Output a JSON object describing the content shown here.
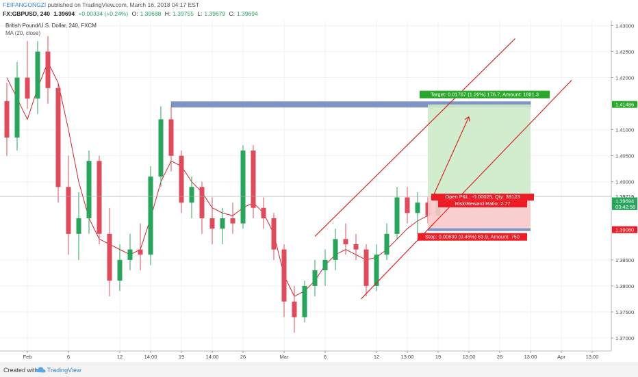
{
  "header": {
    "author": "FEIFANGONGZI",
    "published": "published on TradingView.com, March 16, 2018 04:17 EST",
    "symbol": "FX:GBPUSD, 240",
    "last": "1.39694",
    "change": "+0.00334 (+0.24%)",
    "o_label": "O:",
    "o_value": "1.39688",
    "h_label": "H:",
    "h_value": "1.39755",
    "l_label": "L:",
    "l_value": "1.39679",
    "c_label": "C:",
    "c_value": "1.39694"
  },
  "legend": {
    "instrument": "British Pound/U.S. Dollar, 240, FXCM",
    "indicator": "MA (20, close)"
  },
  "footer": {
    "created_with": "Created with",
    "brand": "TradingView"
  },
  "colors": {
    "up": "#26a65b",
    "down": "#e04a5a",
    "ma": "#d4232f",
    "channel": "#d92626",
    "target_zone": "#cdebc8",
    "stop_zone": "#f8c9c9",
    "resistance_box": "#7e93c6",
    "target_tag": "#2aa82a",
    "stop_tag": "#ee1c24"
  },
  "chart_data": {
    "type": "candlestick",
    "symbol": "GBPUSD",
    "timeframe": "240",
    "ylim": [
      1.3675,
      1.4315
    ],
    "y_ticks": [
      "1.43000",
      "1.42500",
      "1.42000",
      "1.41000",
      "1.40500",
      "1.40000",
      "1.38500",
      "1.38000",
      "1.37500",
      "1.37000"
    ],
    "x_ticks": [
      {
        "label": "Feb",
        "bar": 2
      },
      {
        "label": "6",
        "bar": 6
      },
      {
        "label": "12",
        "bar": 11
      },
      {
        "label": "14:00",
        "bar": 14
      },
      {
        "label": "19",
        "bar": 17
      },
      {
        "label": "14:00",
        "bar": 20
      },
      {
        "label": "26",
        "bar": 23
      },
      {
        "label": "Mar",
        "bar": 27
      },
      {
        "label": "6",
        "bar": 31
      },
      {
        "label": "12",
        "bar": 36
      },
      {
        "label": "13:00",
        "bar": 39
      },
      {
        "label": "19",
        "bar": 42
      },
      {
        "label": "13:00",
        "bar": 45
      },
      {
        "label": "26",
        "bar": 48
      },
      {
        "label": "13:00",
        "bar": 51
      },
      {
        "label": "Apr",
        "bar": 54
      },
      {
        "label": "13:00",
        "bar": 57
      }
    ],
    "price_labels": {
      "target": "1.41486",
      "current_upper": "1.39719",
      "current": "1.39694",
      "countdown": "03:42:56",
      "stop": "1.39080"
    },
    "candles": [
      [
        1.4155,
        1.419,
        1.405,
        1.4085
      ],
      [
        1.4085,
        1.423,
        1.406,
        1.42
      ],
      [
        1.42,
        1.427,
        1.414,
        1.416
      ],
      [
        1.416,
        1.427,
        1.413,
        1.425
      ],
      [
        1.425,
        1.428,
        1.415,
        1.418
      ],
      [
        1.418,
        1.419,
        1.396,
        1.399
      ],
      [
        1.399,
        1.405,
        1.386,
        1.39
      ],
      [
        1.39,
        1.398,
        1.385,
        1.393
      ],
      [
        1.393,
        1.406,
        1.39,
        1.404
      ],
      [
        1.404,
        1.405,
        1.388,
        1.39
      ],
      [
        1.39,
        1.395,
        1.378,
        1.381
      ],
      [
        1.381,
        1.388,
        1.379,
        1.385
      ],
      [
        1.385,
        1.39,
        1.383,
        1.387
      ],
      [
        1.387,
        1.392,
        1.383,
        1.386
      ],
      [
        1.386,
        1.403,
        1.384,
        1.401
      ],
      [
        1.401,
        1.4145,
        1.399,
        1.412
      ],
      [
        1.412,
        1.4145,
        1.402,
        1.405
      ],
      [
        1.405,
        1.406,
        1.394,
        1.396
      ],
      [
        1.396,
        1.401,
        1.393,
        1.399
      ],
      [
        1.399,
        1.4,
        1.39,
        1.393
      ],
      [
        1.393,
        1.397,
        1.388,
        1.391
      ],
      [
        1.391,
        1.395,
        1.388,
        1.393
      ],
      [
        1.393,
        1.396,
        1.39,
        1.392
      ],
      [
        1.392,
        1.407,
        1.391,
        1.406
      ],
      [
        1.406,
        1.407,
        1.393,
        1.395
      ],
      [
        1.395,
        1.397,
        1.391,
        1.393
      ],
      [
        1.393,
        1.394,
        1.385,
        1.387
      ],
      [
        1.387,
        1.388,
        1.374,
        1.377
      ],
      [
        1.377,
        1.38,
        1.371,
        1.374
      ],
      [
        1.374,
        1.381,
        1.373,
        1.38
      ],
      [
        1.38,
        1.385,
        1.378,
        1.383
      ],
      [
        1.383,
        1.387,
        1.38,
        1.385
      ],
      [
        1.385,
        1.391,
        1.383,
        1.389
      ],
      [
        1.389,
        1.392,
        1.386,
        1.388
      ],
      [
        1.388,
        1.39,
        1.385,
        1.387
      ],
      [
        1.387,
        1.388,
        1.378,
        1.38
      ],
      [
        1.38,
        1.388,
        1.379,
        1.386
      ],
      [
        1.386,
        1.392,
        1.385,
        1.39
      ],
      [
        1.39,
        1.399,
        1.389,
        1.397
      ],
      [
        1.397,
        1.399,
        1.392,
        1.394
      ],
      [
        1.394,
        1.398,
        1.39,
        1.396
      ],
      [
        1.396,
        1.397,
        1.392,
        1.3935
      ],
      [
        1.3935,
        1.3975,
        1.393,
        1.3969
      ]
    ],
    "ma": [
      1.42,
      1.416,
      1.412,
      1.418,
      1.423,
      1.419,
      1.41,
      1.4,
      1.393,
      1.389,
      1.388,
      1.387,
      1.386,
      1.387,
      1.393,
      1.4,
      1.404,
      1.403,
      1.4,
      1.398,
      1.395,
      1.394,
      1.3935,
      1.395,
      1.396,
      1.394,
      1.39,
      1.382,
      1.378,
      1.379,
      1.381,
      1.384,
      1.386,
      1.387,
      1.386,
      1.385,
      1.3855,
      1.387,
      1.389,
      1.391,
      1.3925,
      1.3935,
      1.3945
    ],
    "trade_setup": {
      "target_text": "Target: 0.01767 (1.26%) 176.7, Amount: 1691.3",
      "pnl_text": "Open P&L: -0.00025, Qty: 39123",
      "rr_text": "Risk/Reward Ratio: 2.77",
      "stop_text": "Stop: 0.00639 (0.46%) 63.9, Amount: 750",
      "entry": 1.39719,
      "target": 1.41486,
      "stop": 1.3908
    }
  }
}
